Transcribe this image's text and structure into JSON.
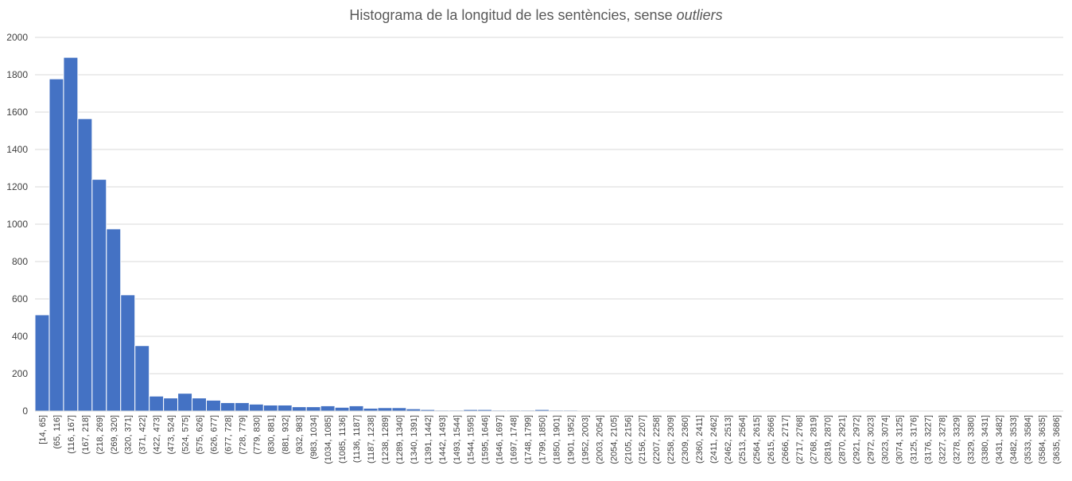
{
  "chart_data": {
    "type": "bar",
    "title": "Histograma de la longitud de les sentències, sense",
    "title_emphasis": "outliers",
    "xlabel": "",
    "ylabel": "",
    "ylim": [
      0,
      2000
    ],
    "yticks": [
      0,
      200,
      400,
      600,
      800,
      1000,
      1200,
      1400,
      1600,
      1800,
      2000
    ],
    "grid": true,
    "legend": "none",
    "bar_color": "#4472c4",
    "categories": [
      "[14, 65]",
      "(65, 116]",
      "(116, 167]",
      "(167, 218]",
      "(218, 269]",
      "(269, 320]",
      "(320, 371]",
      "(371, 422]",
      "(422, 473]",
      "(473, 524]",
      "(524, 575]",
      "(575, 626]",
      "(626, 677]",
      "(677, 728]",
      "(728, 779]",
      "(779, 830]",
      "(830, 881]",
      "(881, 932]",
      "(932, 983]",
      "(983, 1034]",
      "(1034, 1085]",
      "(1085, 1136]",
      "(1136, 1187]",
      "(1187, 1238]",
      "(1238, 1289]",
      "(1289, 1340]",
      "(1340, 1391]",
      "(1391, 1442]",
      "(1442, 1493]",
      "(1493, 1544]",
      "(1544, 1595]",
      "(1595, 1646]",
      "(1646, 1697]",
      "(1697, 1748]",
      "(1748, 1799]",
      "(1799, 1850]",
      "(1850, 1901]",
      "(1901, 1952]",
      "(1952, 2003]",
      "(2003, 2054]",
      "(2054, 2105]",
      "(2105, 2156]",
      "(2156, 2207]",
      "(2207, 2258]",
      "(2258, 2309]",
      "(2309, 2360]",
      "(2360, 2411]",
      "(2411, 2462]",
      "(2462, 2513]",
      "(2513, 2564]",
      "(2564, 2615]",
      "(2615, 2666]",
      "(2666, 2717]",
      "(2717, 2768]",
      "(2768, 2819]",
      "(2819, 2870]",
      "(2870, 2921]",
      "(2921, 2972]",
      "(2972, 3023]",
      "(3023, 3074]",
      "(3074, 3125]",
      "(3125, 3176]",
      "(3176, 3227]",
      "(3227, 3278]",
      "(3278, 3329]",
      "(3329, 3380]",
      "(3380, 3431]",
      "(3431, 3482]",
      "(3482, 3533]",
      "(3533, 3584]",
      "(3584, 3635]",
      "(3635, 3686]"
    ],
    "values": [
      515,
      1778,
      1893,
      1565,
      1240,
      975,
      622,
      350,
      80,
      70,
      95,
      70,
      58,
      45,
      45,
      37,
      32,
      32,
      23,
      23,
      28,
      20,
      28,
      15,
      18,
      18,
      12,
      8,
      5,
      5,
      8,
      8,
      5,
      5,
      5,
      8,
      5,
      5,
      3,
      2,
      0,
      3,
      3,
      3,
      3,
      0,
      0,
      0,
      0,
      0,
      3,
      0,
      0,
      0,
      0,
      0,
      0,
      0,
      0,
      0,
      0,
      0,
      0,
      0,
      0,
      0,
      0,
      0,
      0,
      0,
      0,
      0
    ]
  }
}
